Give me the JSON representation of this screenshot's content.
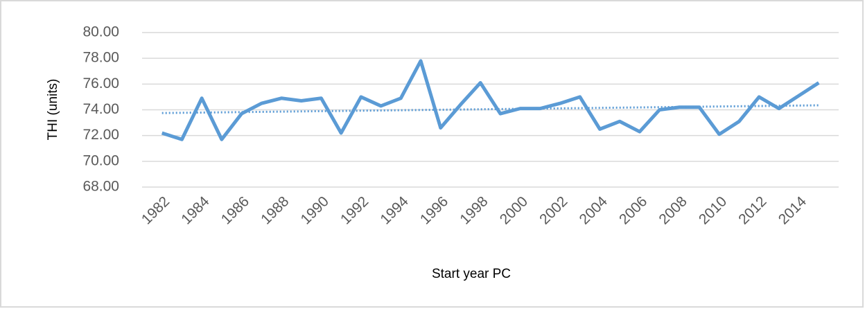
{
  "chart_data": {
    "type": "line",
    "x_label": "Start year PC",
    "y_label": "THI (units)",
    "x": [
      1982,
      1983,
      1984,
      1985,
      1986,
      1987,
      1988,
      1989,
      1990,
      1991,
      1992,
      1993,
      1994,
      1995,
      1996,
      1997,
      1998,
      1999,
      2000,
      2001,
      2002,
      2003,
      2004,
      2005,
      2006,
      2007,
      2008,
      2009,
      2010,
      2011,
      2012,
      2013,
      2014,
      2015
    ],
    "series": [
      {
        "color": "#5b9bd5",
        "values": [
          72.2,
          71.7,
          74.9,
          71.7,
          73.7,
          74.5,
          74.9,
          74.7,
          74.9,
          72.2,
          75.0,
          74.3,
          74.9,
          77.8,
          72.6,
          74.4,
          76.1,
          73.7,
          74.1,
          74.1,
          74.5,
          75.0,
          72.5,
          73.1,
          72.3,
          74.0,
          74.2,
          74.2,
          72.1,
          73.1,
          75.0,
          74.1,
          75.1,
          76.1
        ]
      }
    ],
    "trendline": {
      "x": [
        1982,
        2015
      ],
      "values": [
        73.75,
        74.35
      ],
      "color": "#5b9bd5",
      "style": "dotted"
    },
    "xlim": [
      1981,
      2016
    ],
    "xticks": [
      1982,
      1984,
      1986,
      1988,
      1990,
      1992,
      1994,
      1996,
      1998,
      2000,
      2002,
      2004,
      2006,
      2008,
      2010,
      2012,
      2014
    ],
    "ylim": [
      68,
      80
    ],
    "yticks": [
      {
        "value": 68,
        "label": "68.00"
      },
      {
        "value": 70,
        "label": "70.00"
      },
      {
        "value": 72,
        "label": "72.00"
      },
      {
        "value": 74,
        "label": "74.00"
      },
      {
        "value": 76,
        "label": "76.00"
      },
      {
        "value": 78,
        "label": "78.00"
      },
      {
        "value": 80,
        "label": "80.00"
      }
    ],
    "grid": true
  }
}
